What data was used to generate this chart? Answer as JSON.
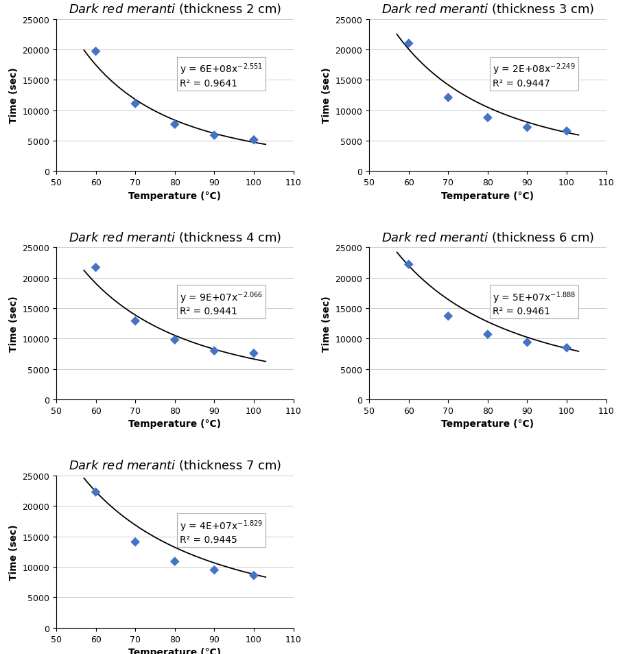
{
  "panels": [
    {
      "title_italic": "Dark red meranti",
      "title_normal": " (thickness 2 cm)",
      "x": [
        60,
        70,
        80,
        90,
        100
      ],
      "y": [
        19700,
        11100,
        7700,
        5900,
        5150
      ],
      "ann_line1": "y = 6E+08x",
      "ann_exp": "-2.551",
      "ann_line2": "R² = 0.9641",
      "coeff": 600000000.0,
      "power": -2.551
    },
    {
      "title_italic": "Dark red meranti",
      "title_normal": " (thickness 3 cm)",
      "x": [
        60,
        70,
        80,
        90,
        100
      ],
      "y": [
        21000,
        12100,
        8800,
        7200,
        6600
      ],
      "ann_line1": "y = 2E+08x",
      "ann_exp": "-2.249",
      "ann_line2": "R² = 0.9447",
      "coeff": 200000000.0,
      "power": -2.249
    },
    {
      "title_italic": "Dark red meranti",
      "title_normal": " (thickness 4 cm)",
      "x": [
        60,
        70,
        80,
        90,
        100
      ],
      "y": [
        21700,
        12900,
        9800,
        8000,
        7600
      ],
      "ann_line1": "y = 9E+07x",
      "ann_exp": "-2.066",
      "ann_line2": "R² = 0.9441",
      "coeff": 90000000.0,
      "power": -2.066
    },
    {
      "title_italic": "Dark red meranti",
      "title_normal": " (thickness 6 cm)",
      "x": [
        60,
        70,
        80,
        90,
        100
      ],
      "y": [
        22200,
        13700,
        10700,
        9400,
        8500
      ],
      "ann_line1": "y = 5E+07x",
      "ann_exp": "-1.888",
      "ann_line2": "R² = 0.9461",
      "coeff": 50000000.0,
      "power": -1.888
    },
    {
      "title_italic": "Dark red meranti",
      "title_normal": " (thickness 7 cm)",
      "x": [
        60,
        70,
        80,
        90,
        100
      ],
      "y": [
        22300,
        14100,
        10900,
        9500,
        8600
      ],
      "ann_line1": "y = 4E+07x",
      "ann_exp": "-1.829",
      "ann_line2": "R² = 0.9445",
      "coeff": 40000000.0,
      "power": -1.829
    }
  ],
  "marker_color": "#4472C4",
  "marker_size": 7,
  "line_color": "black",
  "background_color": "white",
  "xlabel": "Temperature (°C)",
  "ylabel": "Time (sec)",
  "xlim": [
    50,
    110
  ],
  "ylim": [
    0,
    25000
  ],
  "yticks": [
    0,
    5000,
    10000,
    15000,
    20000,
    25000
  ],
  "xticks": [
    50,
    60,
    70,
    80,
    90,
    100,
    110
  ],
  "title_fontsize": 13,
  "label_fontsize": 10,
  "tick_fontsize": 9,
  "annotation_fontsize": 10,
  "curve_xstart": 57,
  "curve_xend": 103
}
